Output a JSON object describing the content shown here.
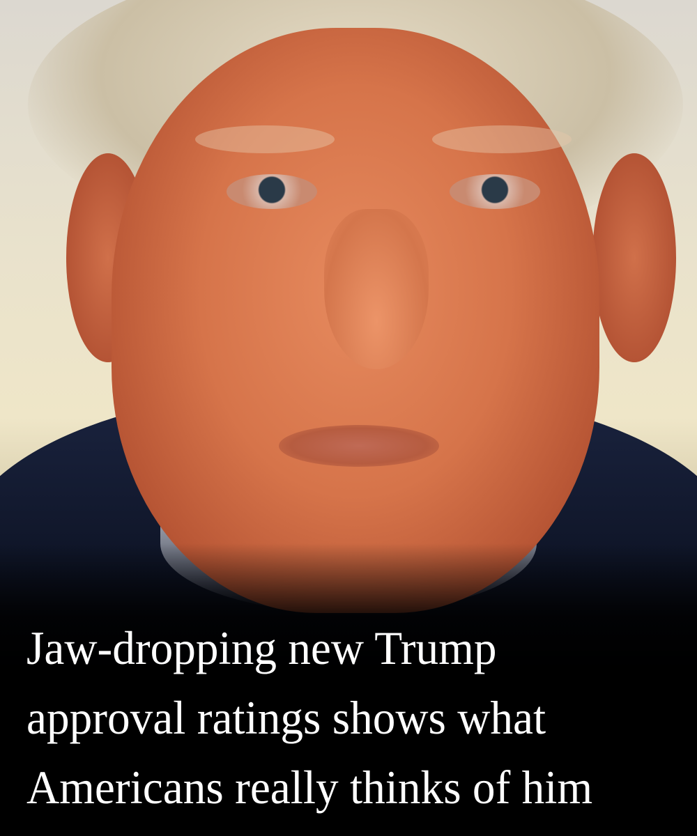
{
  "headline": {
    "lines": [
      "Jaw-dropping new Trump",
      "approval ratings shows what",
      "Americans really thinks of him"
    ],
    "text_color": "#ffffff",
    "background_color": "#000000"
  },
  "image": {
    "subject": "close-up portrait photo"
  }
}
